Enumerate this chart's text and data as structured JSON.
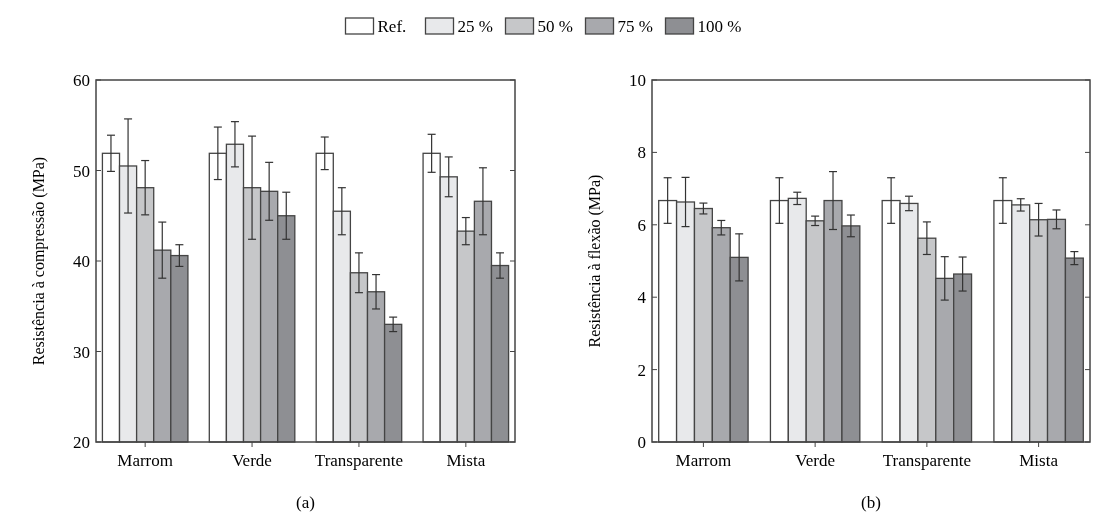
{
  "chart_data": [
    {
      "type": "bar",
      "ylabel": "Resistência à compressão (MPa)",
      "categories": [
        "Marrom",
        "Verde",
        "Transparente",
        "Mista"
      ],
      "ylim": [
        20,
        60
      ],
      "yticks": [
        20,
        30,
        40,
        50,
        60
      ],
      "legend": "top",
      "annotations": [
        "(a)"
      ],
      "series": [
        {
          "name": "Ref.",
          "color": "#ffffff",
          "values": [
            51.9,
            51.9,
            51.9,
            51.9
          ],
          "errors": [
            2.0,
            2.9,
            1.8,
            2.1
          ]
        },
        {
          "name": "25 %",
          "color": "#e8e9eb",
          "values": [
            50.5,
            52.9,
            45.5,
            49.3
          ],
          "errors": [
            5.2,
            2.5,
            2.6,
            2.2
          ]
        },
        {
          "name": "50 %",
          "color": "#c6c7c9",
          "values": [
            48.1,
            48.1,
            38.7,
            43.3
          ],
          "errors": [
            3.0,
            5.7,
            2.2,
            1.5
          ]
        },
        {
          "name": "75 %",
          "color": "#a8a9ad",
          "values": [
            41.2,
            47.7,
            36.6,
            46.6
          ],
          "errors": [
            3.1,
            3.2,
            1.9,
            3.7
          ]
        },
        {
          "name": "100 %",
          "color": "#8e8f93",
          "values": [
            40.6,
            45.0,
            33.0,
            39.5
          ],
          "errors": [
            1.2,
            2.6,
            0.8,
            1.4
          ]
        }
      ]
    },
    {
      "type": "bar",
      "ylabel": "Resistência à flexão (MPa)",
      "categories": [
        "Marrom",
        "Verde",
        "Transparente",
        "Mista"
      ],
      "ylim": [
        0,
        10
      ],
      "yticks": [
        0,
        2,
        4,
        6,
        8,
        10
      ],
      "annotations": [
        "(b)"
      ],
      "series": [
        {
          "color": "#ffffff",
          "values": [
            6.67,
            6.67,
            6.67,
            6.67
          ],
          "errors": [
            0.63,
            0.63,
            0.63,
            0.63
          ]
        },
        {
          "color": "#e8e9eb",
          "values": [
            6.63,
            6.73,
            6.59,
            6.55
          ],
          "errors": [
            0.68,
            0.17,
            0.2,
            0.17
          ]
        },
        {
          "color": "#c6c7c9",
          "values": [
            6.45,
            6.11,
            5.63,
            6.14
          ],
          "errors": [
            0.15,
            0.13,
            0.45,
            0.45
          ]
        },
        {
          "color": "#a8a9ad",
          "values": [
            5.92,
            6.67,
            4.52,
            6.15
          ],
          "errors": [
            0.2,
            0.8,
            0.6,
            0.26
          ]
        },
        {
          "color": "#8e8f93",
          "values": [
            5.1,
            5.97,
            4.64,
            5.08
          ],
          "errors": [
            0.65,
            0.3,
            0.47,
            0.18
          ]
        }
      ]
    }
  ]
}
